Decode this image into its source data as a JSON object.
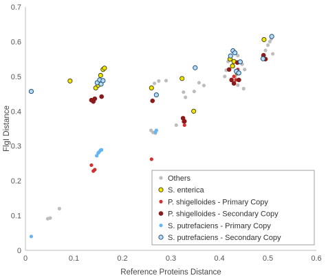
{
  "chart_data": {
    "type": "scatter",
    "title": "",
    "xlabel": "Reference Proteins Distance",
    "ylabel": "FlgI Distance",
    "xlim": [
      0,
      0.6
    ],
    "ylim": [
      0,
      0.7
    ],
    "xticks": [
      0,
      0.1,
      0.2,
      0.3,
      0.4,
      0.5,
      0.6
    ],
    "yticks": [
      0,
      0.1,
      0.2,
      0.3,
      0.4,
      0.5,
      0.6,
      0.7
    ],
    "xtick_labels": [
      "0",
      "0.1",
      "0.2",
      "0.3",
      "0.4",
      "0.5",
      "0.6"
    ],
    "ytick_labels": [
      "0",
      "0.1",
      "0.2",
      "0.3",
      "0.4",
      "0.5",
      "0.6",
      "0.7"
    ],
    "grid": false,
    "legend_position": "bottom-right",
    "series": [
      {
        "name": "Others",
        "color": "#bdbdbd",
        "marker": "filled-small",
        "points": [
          [
            0.046,
            0.091
          ],
          [
            0.051,
            0.093
          ],
          [
            0.07,
            0.12
          ],
          [
            0.259,
            0.345
          ],
          [
            0.263,
            0.339
          ],
          [
            0.268,
            0.337
          ],
          [
            0.266,
            0.48
          ],
          [
            0.275,
            0.487
          ],
          [
            0.29,
            0.488
          ],
          [
            0.311,
            0.36
          ],
          [
            0.326,
            0.455
          ],
          [
            0.33,
            0.44
          ],
          [
            0.348,
            0.457
          ],
          [
            0.358,
            0.482
          ],
          [
            0.368,
            0.474
          ],
          [
            0.411,
            0.5
          ],
          [
            0.414,
            0.518
          ],
          [
            0.418,
            0.543
          ],
          [
            0.422,
            0.55
          ],
          [
            0.429,
            0.528
          ],
          [
            0.433,
            0.5
          ],
          [
            0.438,
            0.56
          ],
          [
            0.442,
            0.49
          ],
          [
            0.447,
            0.535
          ],
          [
            0.45,
            0.465
          ],
          [
            0.452,
            0.52
          ],
          [
            0.438,
            0.475
          ],
          [
            0.495,
            0.575
          ],
          [
            0.5,
            0.59
          ],
          [
            0.504,
            0.6
          ],
          [
            0.507,
            0.608
          ],
          [
            0.51,
            0.565
          ]
        ]
      },
      {
        "name": "S. enterica",
        "color": "#f2e600",
        "marker": "filled-outline",
        "points": [
          [
            0.092,
            0.487
          ],
          [
            0.145,
            0.467
          ],
          [
            0.15,
            0.475
          ],
          [
            0.155,
            0.503
          ],
          [
            0.16,
            0.52
          ],
          [
            0.163,
            0.524
          ],
          [
            0.26,
            0.467
          ],
          [
            0.323,
            0.494
          ],
          [
            0.347,
            0.4
          ],
          [
            0.422,
            0.55
          ],
          [
            0.427,
            0.53
          ],
          [
            0.43,
            0.543
          ],
          [
            0.437,
            0.51
          ],
          [
            0.492,
            0.606
          ]
        ]
      },
      {
        "name": "P. shigelloides - Primary Copy",
        "color": "#d32f2f",
        "marker": "filled-small",
        "points": [
          [
            0.136,
            0.245
          ],
          [
            0.14,
            0.228
          ],
          [
            0.143,
            0.232
          ],
          [
            0.26,
            0.262
          ],
          [
            0.326,
            0.37
          ],
          [
            0.328,
            0.36
          ],
          [
            0.43,
            0.5
          ],
          [
            0.434,
            0.49
          ],
          [
            0.438,
            0.52
          ],
          [
            0.49,
            0.558
          ],
          [
            0.495,
            0.55
          ]
        ]
      },
      {
        "name": "P. shigelloides - Secondary Copy",
        "color": "#8b1a1a",
        "marker": "filled",
        "points": [
          [
            0.136,
            0.432
          ],
          [
            0.14,
            0.428
          ],
          [
            0.143,
            0.436
          ],
          [
            0.157,
            0.442
          ],
          [
            0.262,
            0.43
          ],
          [
            0.325,
            0.38
          ],
          [
            0.328,
            0.371
          ],
          [
            0.42,
            0.52
          ],
          [
            0.425,
            0.49
          ],
          [
            0.43,
            0.48
          ],
          [
            0.437,
            0.54
          ],
          [
            0.44,
            0.49
          ],
          [
            0.491,
            0.561
          ],
          [
            0.495,
            0.55
          ]
        ]
      },
      {
        "name": "S. putrefaciens - Primary Copy",
        "color": "#64b5f6",
        "marker": "filled-small",
        "points": [
          [
            0.012,
            0.04
          ],
          [
            0.147,
            0.272
          ],
          [
            0.15,
            0.28
          ],
          [
            0.152,
            0.283
          ],
          [
            0.155,
            0.288
          ],
          [
            0.157,
            0.289
          ],
          [
            0.268,
            0.34
          ],
          [
            0.27,
            0.345
          ]
        ]
      },
      {
        "name": "S. putrefaciens - Secondary Copy",
        "color": "#b9dcf5",
        "marker": "open",
        "points": [
          [
            0.012,
            0.457
          ],
          [
            0.148,
            0.482
          ],
          [
            0.153,
            0.49
          ],
          [
            0.156,
            0.478
          ],
          [
            0.16,
            0.488
          ],
          [
            0.27,
            0.447
          ],
          [
            0.35,
            0.525
          ],
          [
            0.423,
            0.559
          ],
          [
            0.428,
            0.574
          ],
          [
            0.432,
            0.568
          ],
          [
            0.435,
            0.515
          ],
          [
            0.44,
            0.51
          ],
          [
            0.443,
            0.542
          ],
          [
            0.49,
            0.551
          ],
          [
            0.508,
            0.615
          ]
        ]
      }
    ]
  }
}
